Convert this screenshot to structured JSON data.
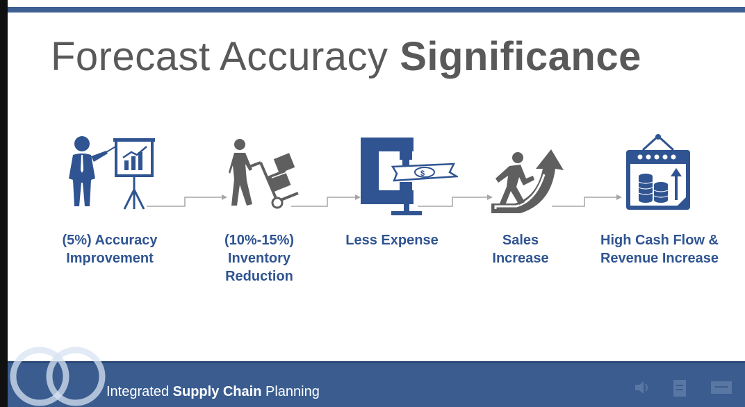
{
  "slide": {
    "title_regular": "Forecast Accuracy",
    "title_bold": "Significance"
  },
  "steps": [
    {
      "icon": "presenter-chart-icon",
      "lines": [
        "(5%) Accuracy",
        "Improvement"
      ]
    },
    {
      "icon": "hand-truck-boxes-icon",
      "lines": [
        "(10%-15%)",
        "Inventory",
        "Reduction"
      ]
    },
    {
      "icon": "clamp-money-icon",
      "lines": [
        "Less Expense"
      ]
    },
    {
      "icon": "person-climbing-arrow-icon",
      "lines": [
        "Sales",
        "Increase"
      ]
    },
    {
      "icon": "calendar-coins-icon",
      "lines": [
        "High Cash Flow &",
        "Revenue Increase"
      ]
    }
  ],
  "footer": {
    "title_regular_1": "Integrated",
    "title_bold": "Supply Chain",
    "title_regular_2": "Planning"
  },
  "colors": {
    "accent": "#3d5f91",
    "label": "#2f5491",
    "icon_gray": "#5f5f5f",
    "title_gray": "#595959"
  }
}
